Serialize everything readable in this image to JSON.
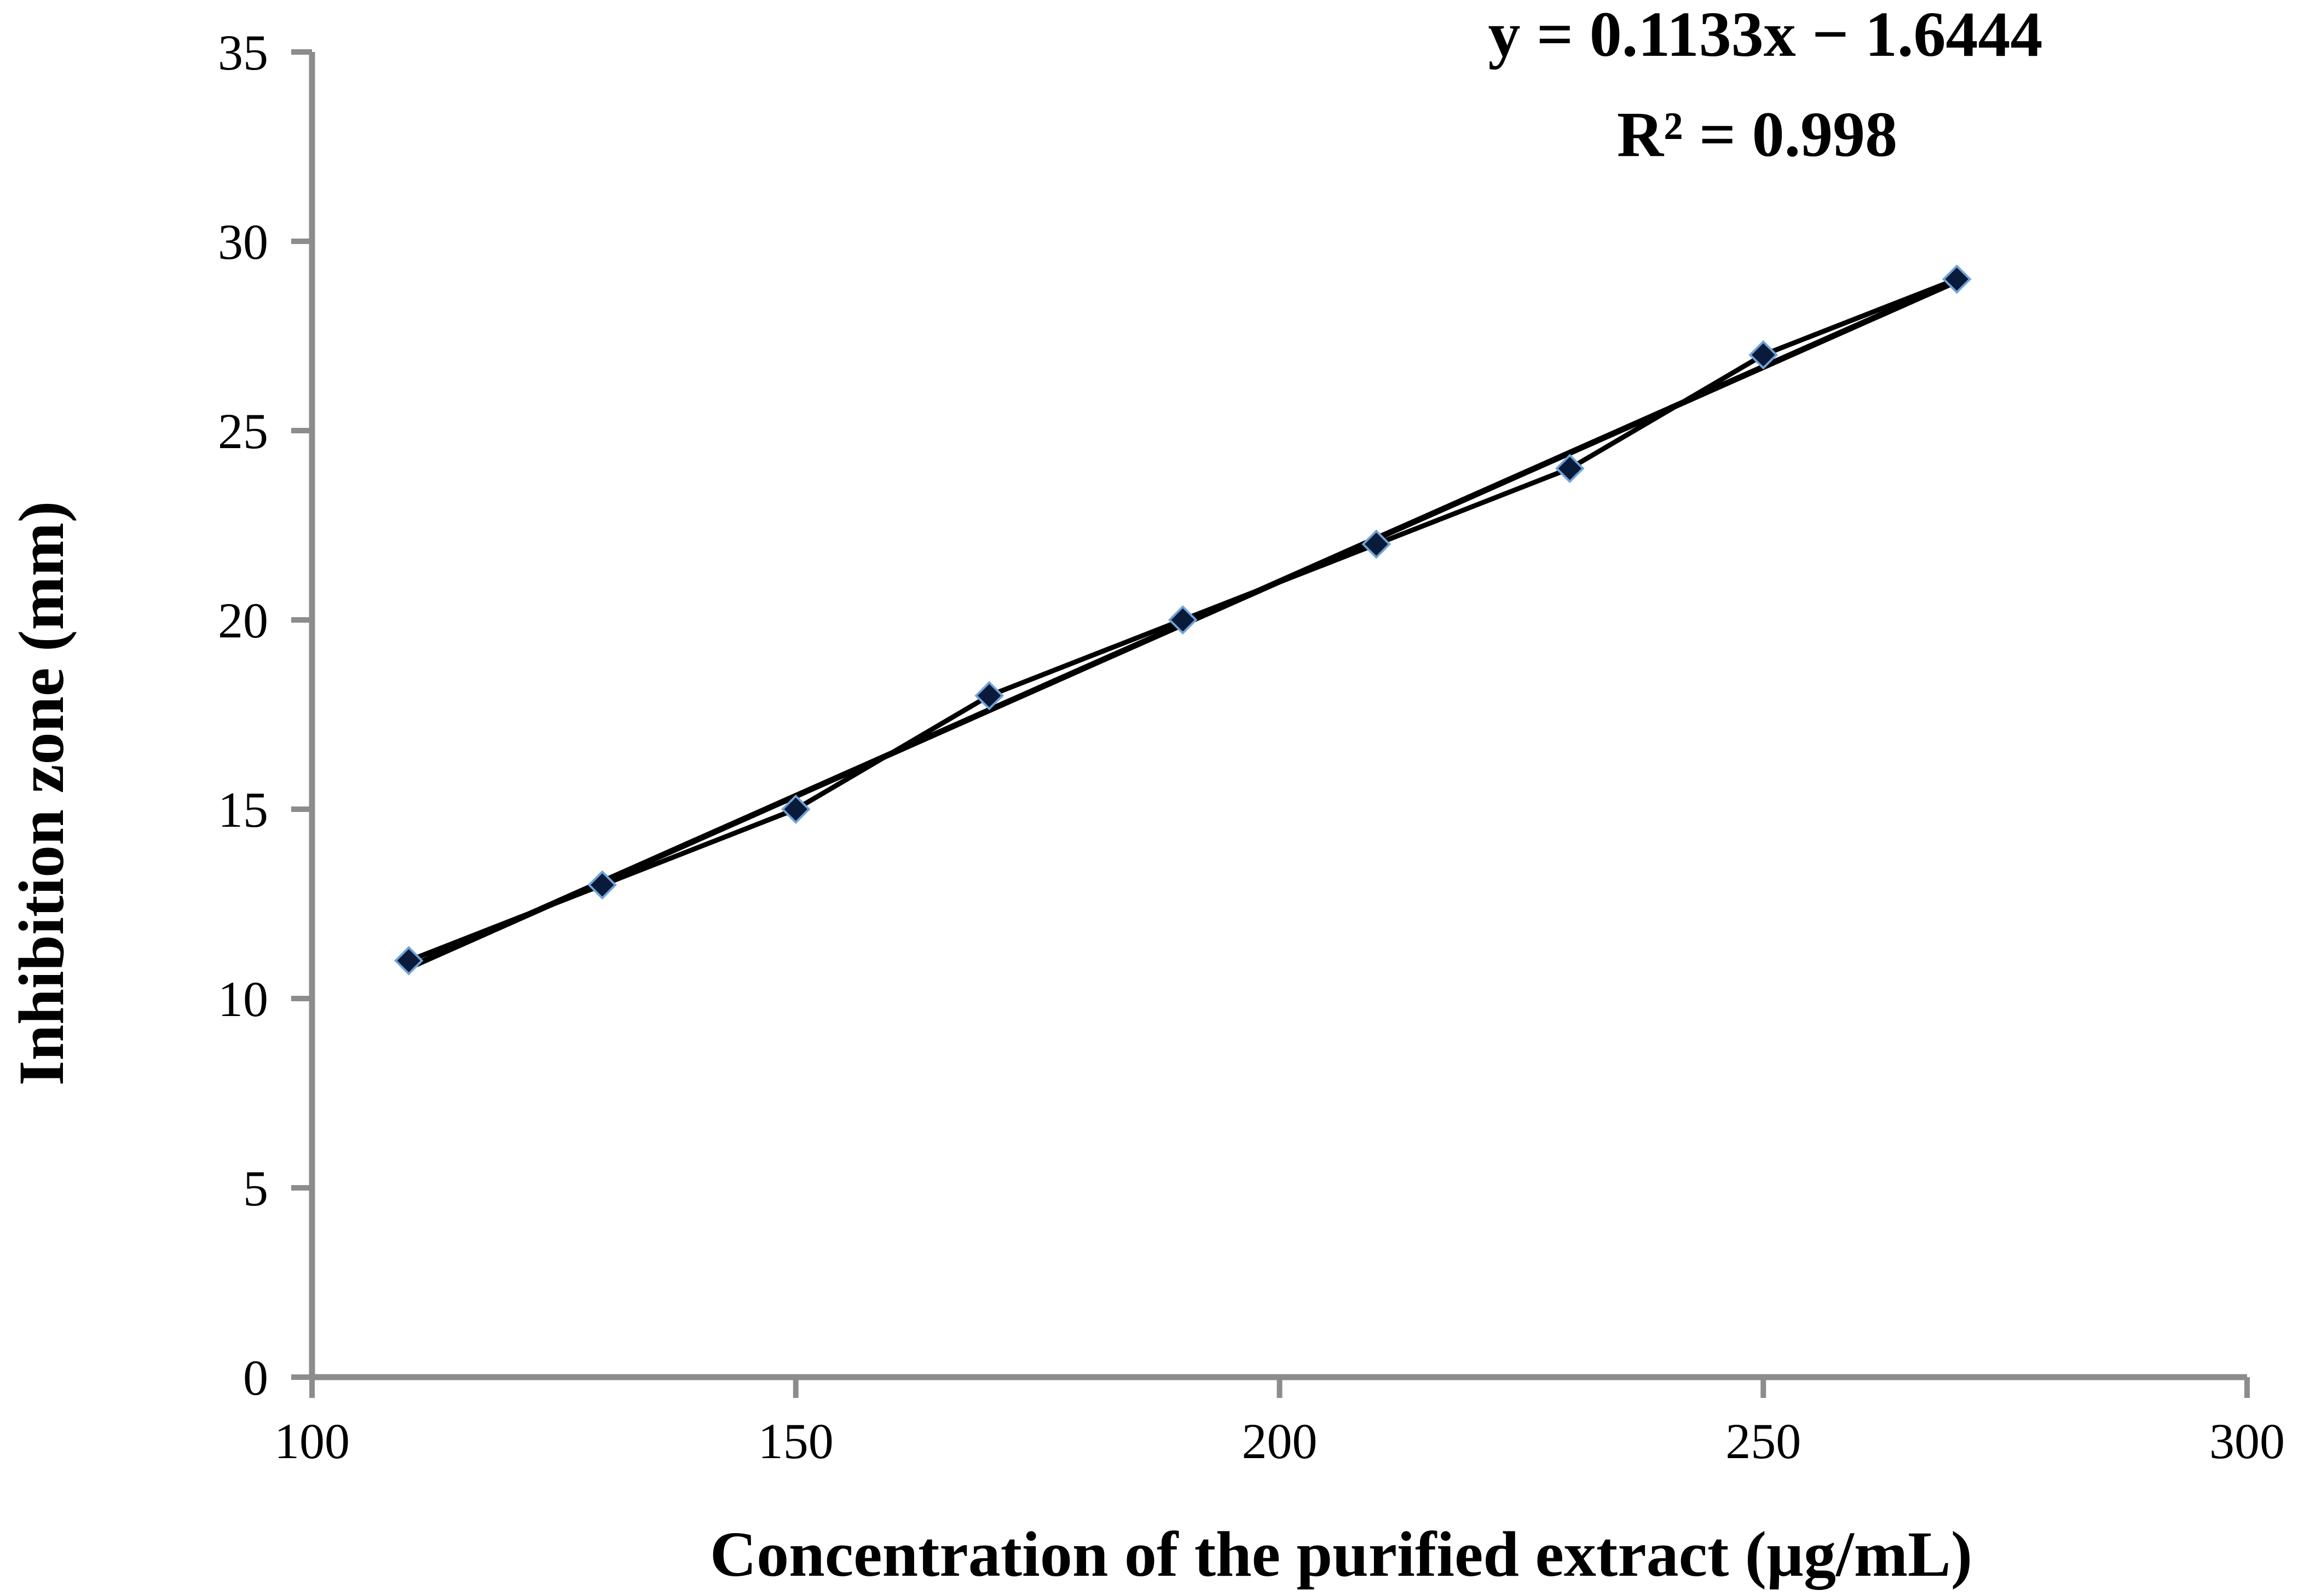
{
  "chart_data": {
    "type": "scatter",
    "xlabel": "Concentration of the purified extract (µg/mL)",
    "ylabel": "Inhibition zone (mm)",
    "xlim": [
      100,
      300
    ],
    "ylim": [
      0,
      35
    ],
    "x_ticks": [
      100,
      150,
      200,
      250,
      300
    ],
    "y_ticks": [
      0,
      5,
      10,
      15,
      20,
      25,
      30,
      35
    ],
    "grid": false,
    "series": [
      {
        "x": [
          110,
          130,
          150,
          170,
          190,
          210,
          230,
          250,
          270
        ],
        "y": [
          11,
          13,
          15,
          18,
          20,
          22,
          24,
          27,
          29
        ],
        "marker": "diamond",
        "connected": true
      }
    ],
    "trendline": {
      "type": "linear",
      "slope": 0.1133,
      "intercept": -1.6444
    },
    "annotations": {
      "equation": "y = 0.1133x − 1.6444",
      "r_squared": "R² = 0.998"
    },
    "colors": {
      "axis": "#8c8c8c",
      "line": "#000000",
      "marker_fill": "#0a1a3a",
      "marker_stroke": "#6fa3d8"
    }
  }
}
